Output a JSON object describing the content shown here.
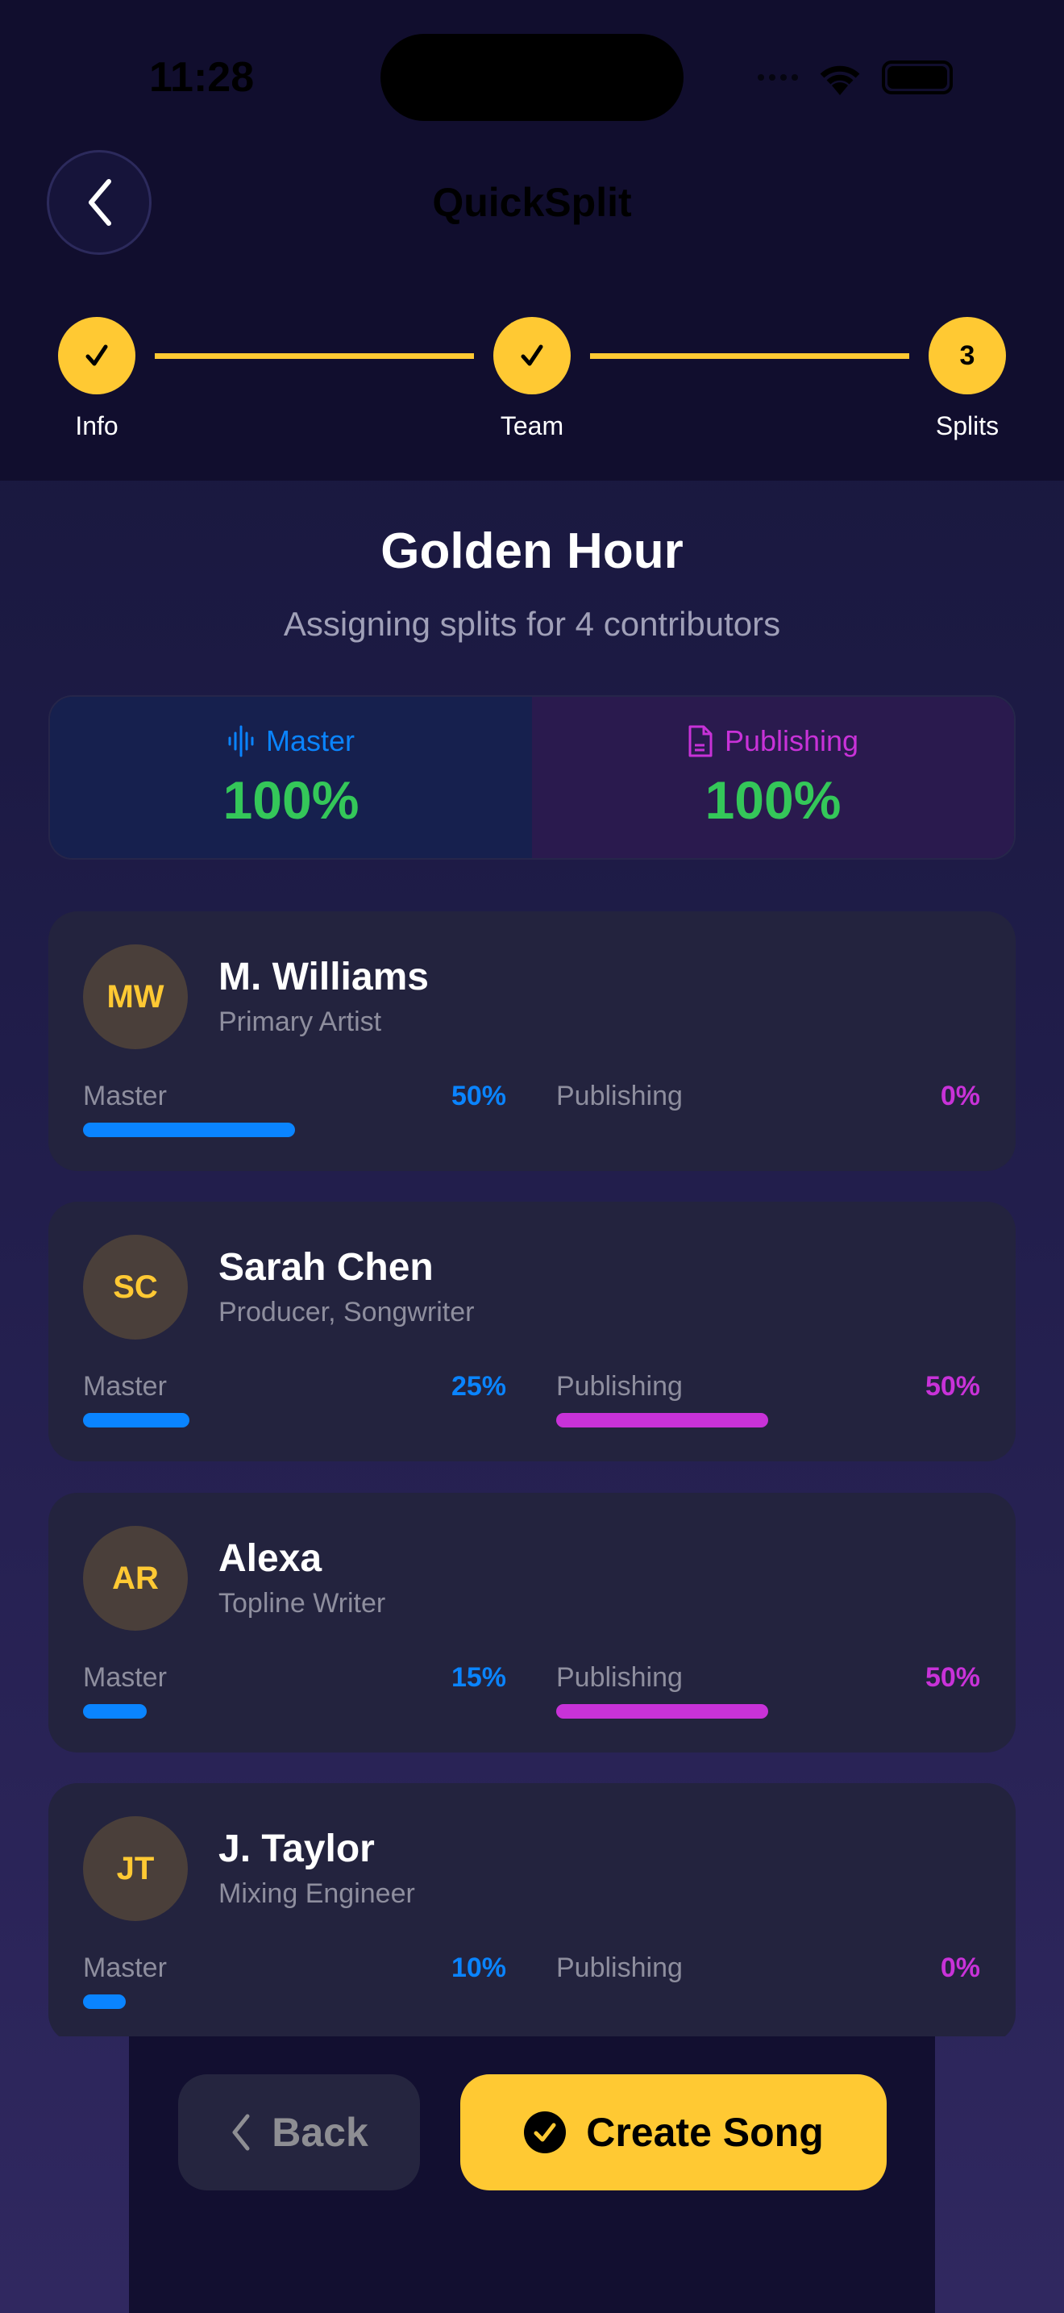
{
  "status_bar": {
    "time": "11:28"
  },
  "header": {
    "title": "QuickSplit",
    "back_icon": "chevron-left-icon"
  },
  "stepper": {
    "steps": [
      {
        "label": "Info",
        "state": "done"
      },
      {
        "label": "Team",
        "state": "done"
      },
      {
        "label": "Splits",
        "state": "current",
        "number": "3"
      }
    ]
  },
  "song": {
    "title": "Golden Hour",
    "subtitle": "Assigning splits for 4 contributors"
  },
  "summary": {
    "master": {
      "label": "Master",
      "value": "100%",
      "icon": "waveform-icon"
    },
    "publishing": {
      "label": "Publishing",
      "value": "100%",
      "icon": "document-icon"
    }
  },
  "colors": {
    "accent": "#ffc933",
    "master": "#0a84ff",
    "publishing": "#c832d8",
    "total_ok": "#34c759"
  },
  "contributors": [
    {
      "initials": "MW",
      "name": "M. Williams",
      "role": "Primary Artist",
      "master_label": "Master",
      "master": "50%",
      "master_value": 50,
      "publishing_label": "Publishing",
      "publishing": "0%",
      "publishing_value": 0
    },
    {
      "initials": "SC",
      "name": "Sarah Chen",
      "role": "Producer, Songwriter",
      "master_label": "Master",
      "master": "25%",
      "master_value": 25,
      "publishing_label": "Publishing",
      "publishing": "50%",
      "publishing_value": 50
    },
    {
      "initials": "AR",
      "name": "Alexa",
      "role": "Topline Writer",
      "master_label": "Master",
      "master": "15%",
      "master_value": 15,
      "publishing_label": "Publishing",
      "publishing": "50%",
      "publishing_value": 50
    },
    {
      "initials": "JT",
      "name": "J. Taylor",
      "role": "Mixing Engineer",
      "master_label": "Master",
      "master": "10%",
      "master_value": 10,
      "publishing_label": "Publishing",
      "publishing": "0%",
      "publishing_value": 0
    }
  ],
  "footer": {
    "back_label": "Back",
    "create_label": "Create Song"
  }
}
